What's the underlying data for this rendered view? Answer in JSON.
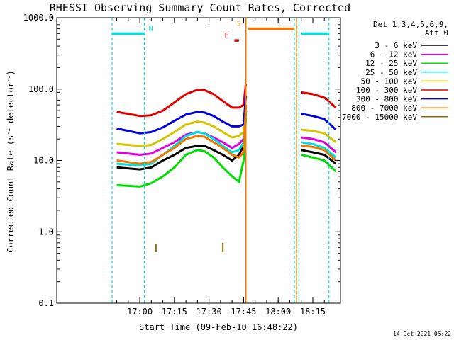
{
  "chart_data": {
    "type": "line",
    "title": "RHESSI Observing Summary Count Rates, Corrected",
    "xlabel": "Start Time (09-Feb-10 16:48:22)",
    "ylabel_parts": [
      "Corrected Count Rate (s",
      "-1",
      " detector",
      "-1",
      ")"
    ],
    "ylim": [
      0.1,
      1000.0
    ],
    "yscale": "log",
    "xlim_minutes": [
      16.4,
      18.45
    ],
    "y_ticks": [
      {
        "value": 0.1,
        "label": "0.1"
      },
      {
        "value": 1.0,
        "label": "1.0"
      },
      {
        "value": 10.0,
        "label": "10.0"
      },
      {
        "value": 100.0,
        "label": "100.0"
      },
      {
        "value": 1000.0,
        "label": "1000.0"
      }
    ],
    "x_ticks": [
      {
        "value": "17:00",
        "label": "17:00"
      },
      {
        "value": "17:15",
        "label": "17:15"
      },
      {
        "value": "17:30",
        "label": "17:30"
      },
      {
        "value": "17:45",
        "label": "17:45"
      },
      {
        "value": "18:00",
        "label": "18:00"
      },
      {
        "value": "18:15",
        "label": "18:15"
      }
    ],
    "legend_header": [
      "Det 1,3,4,5,6,9,",
      "Att 0"
    ],
    "legend_placement": "right",
    "series": [
      {
        "name": "3 - 6 keV",
        "color": "#000000",
        "x": [
          "16:50",
          "17:00",
          "17:05",
          "17:10",
          "17:15",
          "17:20",
          "17:25",
          "17:28",
          "17:32",
          "17:36",
          "17:40",
          "17:43",
          "17:45",
          "17:46",
          "18:10",
          "18:15",
          "18:20",
          "18:25"
        ],
        "y": [
          8,
          7.5,
          8,
          10,
          12,
          15,
          16,
          16,
          14,
          12,
          10,
          12,
          16,
          50,
          14,
          13,
          12,
          9
        ]
      },
      {
        "name": "6 - 12 keV",
        "color": "#e000e0",
        "x": [
          "16:50",
          "17:00",
          "17:05",
          "17:10",
          "17:15",
          "17:20",
          "17:25",
          "17:28",
          "17:32",
          "17:36",
          "17:40",
          "17:43",
          "17:45",
          "17:46",
          "18:10",
          "18:15",
          "18:20",
          "18:25"
        ],
        "y": [
          13,
          12,
          12.5,
          15,
          18,
          23,
          25,
          24,
          21,
          18,
          15,
          17,
          20,
          50,
          21,
          20,
          18,
          13
        ]
      },
      {
        "name": "12 - 25 keV",
        "color": "#00dd00",
        "x": [
          "16:50",
          "17:00",
          "17:05",
          "17:10",
          "17:15",
          "17:20",
          "17:25",
          "17:28",
          "17:32",
          "17:36",
          "17:40",
          "17:43",
          "17:45",
          "17:46",
          "18:10",
          "18:15",
          "18:20",
          "18:25"
        ],
        "y": [
          4.5,
          4.3,
          4.8,
          6,
          8,
          12,
          14,
          13.5,
          11,
          8,
          6,
          5,
          10,
          40,
          12,
          11,
          10,
          7
        ]
      },
      {
        "name": "25 - 50 keV",
        "color": "#00e0e0",
        "x": [
          "16:50",
          "17:00",
          "17:05",
          "17:10",
          "17:15",
          "17:20",
          "17:25",
          "17:28",
          "17:32",
          "17:36",
          "17:40",
          "17:43",
          "17:45",
          "17:46",
          "18:10",
          "18:15",
          "18:20",
          "18:25"
        ],
        "y": [
          9,
          8.5,
          9,
          12,
          16,
          22,
          25,
          24,
          20,
          16,
          13,
          14,
          18,
          50,
          18,
          17,
          15,
          11
        ]
      },
      {
        "name": "50 - 100 keV",
        "color": "#d4c400",
        "x": [
          "16:50",
          "17:00",
          "17:05",
          "17:10",
          "17:15",
          "17:20",
          "17:25",
          "17:28",
          "17:32",
          "17:36",
          "17:40",
          "17:43",
          "17:45",
          "17:46",
          "18:10",
          "18:15",
          "18:20",
          "18:25"
        ],
        "y": [
          17,
          16,
          16.5,
          20,
          25,
          32,
          35,
          34,
          30,
          25,
          21,
          22,
          25,
          60,
          27,
          26,
          24,
          18
        ]
      },
      {
        "name": "100 - 300 keV",
        "color": "#e00000",
        "x": [
          "16:50",
          "17:00",
          "17:05",
          "17:10",
          "17:15",
          "17:20",
          "17:25",
          "17:28",
          "17:32",
          "17:36",
          "17:40",
          "17:43",
          "17:45",
          "17:46",
          "18:10",
          "18:15",
          "18:20",
          "18:25"
        ],
        "y": [
          48,
          42,
          43,
          50,
          65,
          85,
          98,
          97,
          85,
          68,
          55,
          55,
          60,
          120,
          90,
          85,
          76,
          55
        ]
      },
      {
        "name": "300 - 800 keV",
        "color": "#0000e0",
        "x": [
          "16:50",
          "17:00",
          "17:05",
          "17:10",
          "17:15",
          "17:20",
          "17:25",
          "17:28",
          "17:32",
          "17:36",
          "17:40",
          "17:43",
          "17:45",
          "17:46",
          "18:10",
          "18:15",
          "18:20",
          "18:25"
        ],
        "y": [
          28,
          24,
          25,
          29,
          36,
          44,
          48,
          47,
          42,
          35,
          30,
          30,
          32,
          80,
          45,
          42,
          38,
          27
        ]
      },
      {
        "name": "800 - 7000 keV",
        "color": "#f07800",
        "x": [
          "16:50",
          "17:00",
          "17:05",
          "17:10",
          "17:15",
          "17:20",
          "17:25",
          "17:28",
          "17:32",
          "17:36",
          "17:40",
          "17:43",
          "17:45",
          "17:46",
          "18:10",
          "18:15",
          "18:20",
          "18:25"
        ],
        "y": [
          10,
          9,
          9.5,
          12,
          15,
          20,
          22,
          21.5,
          18,
          15,
          12,
          11,
          13,
          60,
          16,
          15.5,
          14,
          10
        ]
      },
      {
        "name": "7000 - 15000 keV",
        "color": "#8b6b00",
        "x": [
          "17:07",
          "17:07",
          "17:36",
          "17:36"
        ],
        "y": [
          0.52,
          0.68,
          0.52,
          0.7
        ]
      }
    ],
    "markers": [
      {
        "label": "N",
        "color": "#00e0e0",
        "level": 600,
        "spans": [
          [
            "16:48",
            "17:02"
          ],
          [
            "18:10",
            "18:22"
          ]
        ]
      },
      {
        "label": "S",
        "color": "#f07800",
        "level": 700,
        "spans": [
          [
            "17:47",
            "18:07"
          ]
        ]
      },
      {
        "label": "F",
        "color": "#e00000",
        "level": 480,
        "spans": [
          [
            "17:41",
            "17:43"
          ]
        ]
      }
    ],
    "vertical_lines": [
      {
        "color": "#00e0e0",
        "style": "dashed",
        "at": [
          "16:48",
          "17:02",
          "18:07",
          "18:09",
          "18:22"
        ]
      },
      {
        "color": "#f07800",
        "style": "solid",
        "at": [
          "17:46",
          "18:08"
        ]
      }
    ]
  },
  "footer_timestamp": "14-Oct-2021 05:22"
}
